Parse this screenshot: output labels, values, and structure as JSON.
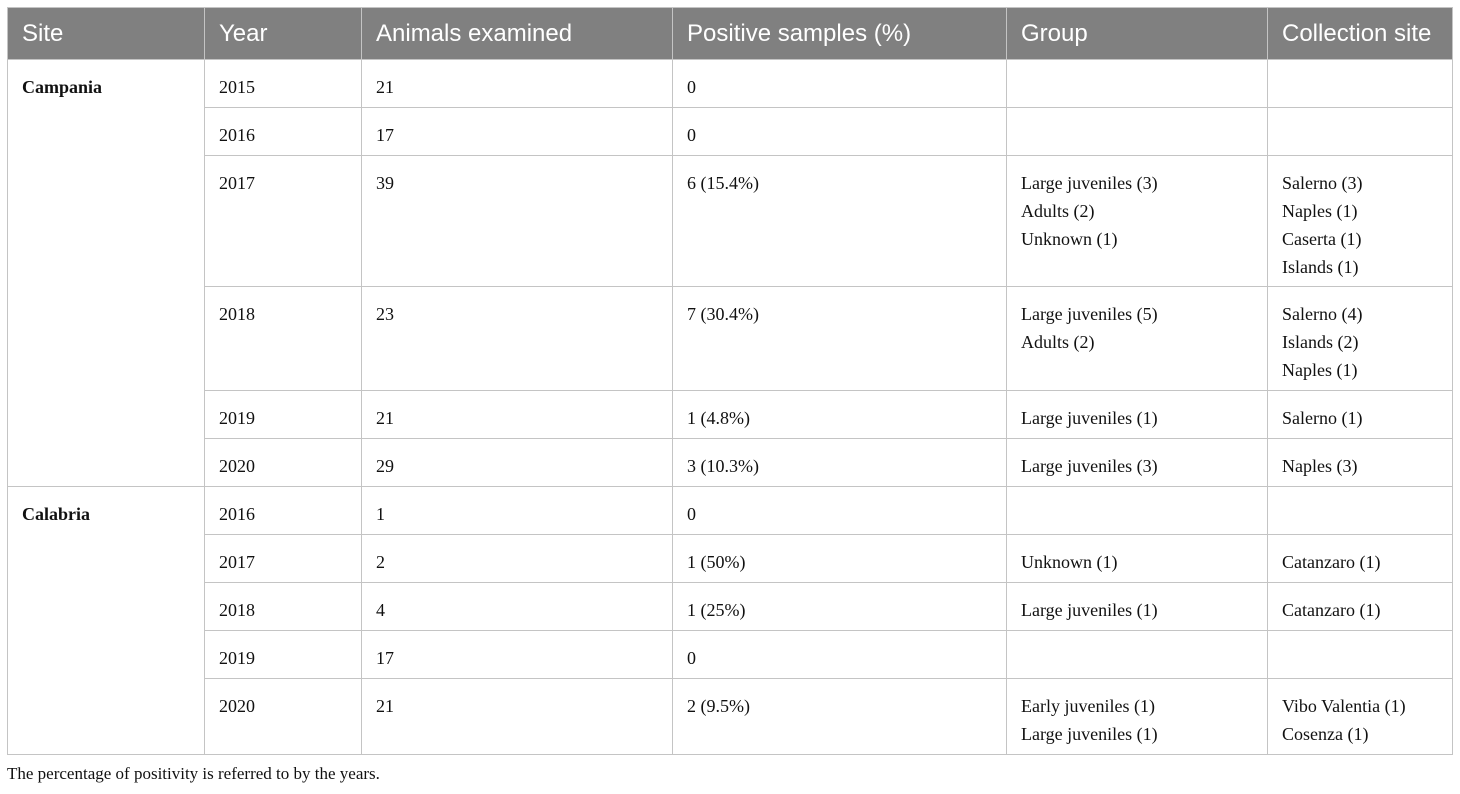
{
  "table": {
    "headers": [
      "Site",
      "Year",
      "Animals examined",
      "Positive samples (%)",
      "Group",
      "Collection site"
    ],
    "sites": [
      {
        "name": "Campania",
        "rows": [
          {
            "year": "2015",
            "animals": "21",
            "positive": "0",
            "group": [],
            "collection": []
          },
          {
            "year": "2016",
            "animals": "17",
            "positive": "0",
            "group": [],
            "collection": []
          },
          {
            "year": "2017",
            "animals": "39",
            "positive": "6 (15.4%)",
            "group": [
              "Large juveniles (3)",
              "Adults (2)",
              "Unknown (1)"
            ],
            "collection": [
              "Salerno (3)",
              "Naples (1)",
              "Caserta (1)",
              "Islands (1)"
            ]
          },
          {
            "year": "2018",
            "animals": "23",
            "positive": "7 (30.4%)",
            "group": [
              "Large juveniles (5)",
              "Adults (2)"
            ],
            "collection": [
              "Salerno (4)",
              "Islands (2)",
              "Naples (1)"
            ]
          },
          {
            "year": "2019",
            "animals": "21",
            "positive": "1 (4.8%)",
            "group": [
              "Large juveniles (1)"
            ],
            "collection": [
              "Salerno (1)"
            ]
          },
          {
            "year": "2020",
            "animals": "29",
            "positive": "3 (10.3%)",
            "group": [
              "Large juveniles (3)"
            ],
            "collection": [
              "Naples (3)"
            ]
          }
        ]
      },
      {
        "name": "Calabria",
        "rows": [
          {
            "year": "2016",
            "animals": "1",
            "positive": "0",
            "group": [],
            "collection": []
          },
          {
            "year": "2017",
            "animals": "2",
            "positive": "1 (50%)",
            "group": [
              "Unknown (1)"
            ],
            "collection": [
              "Catanzaro (1)"
            ]
          },
          {
            "year": "2018",
            "animals": "4",
            "positive": "1 (25%)",
            "group": [
              "Large juveniles (1)"
            ],
            "collection": [
              "Catanzaro (1)"
            ]
          },
          {
            "year": "2019",
            "animals": "17",
            "positive": "0",
            "group": [],
            "collection": []
          },
          {
            "year": "2020",
            "animals": "21",
            "positive": "2 (9.5%)",
            "group": [
              "Early juveniles (1)",
              "Large juveniles (1)"
            ],
            "collection": [
              "Vibo Valentia (1)",
              "Cosenza (1)"
            ]
          }
        ]
      }
    ]
  },
  "footnote": "The percentage of positivity is referred to by the years."
}
